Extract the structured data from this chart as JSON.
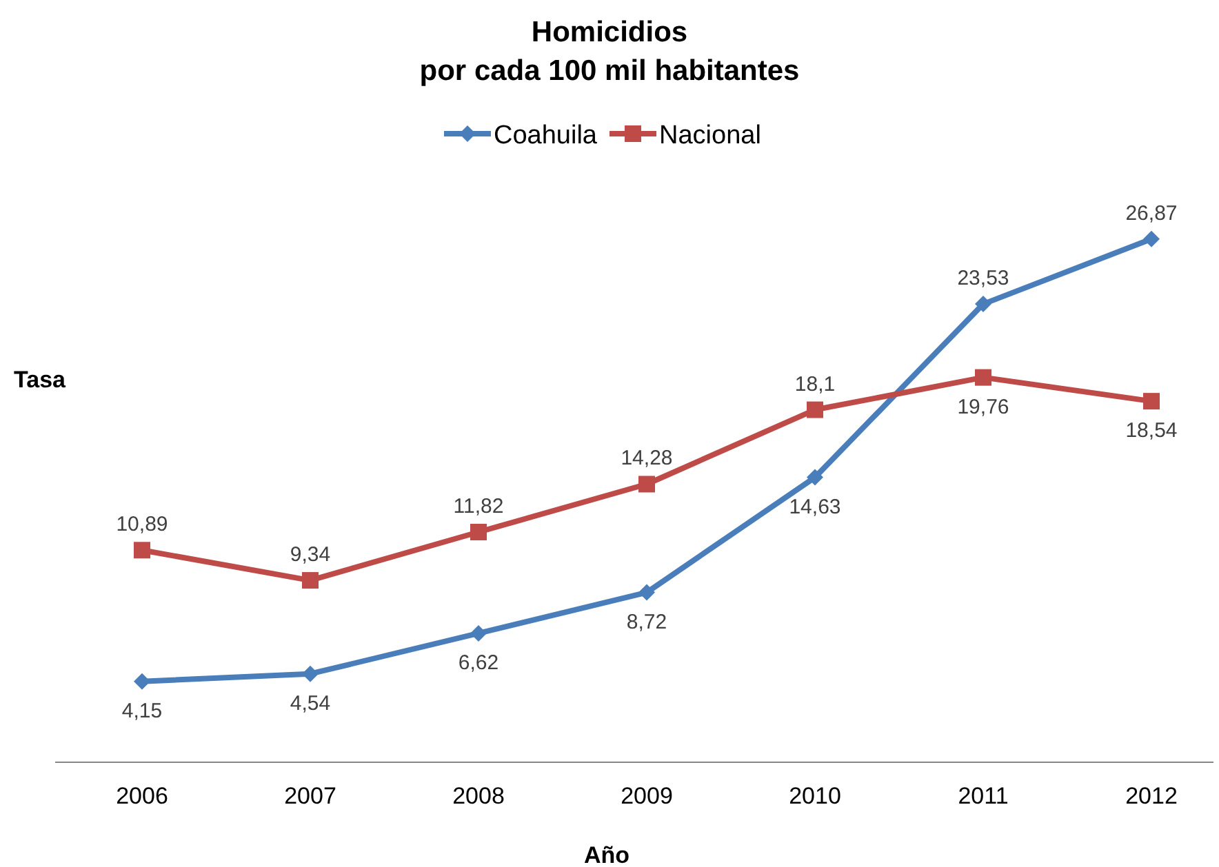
{
  "chart_data": {
    "type": "line",
    "title": "Homicidios\npor cada 100 mil habitantes",
    "xlabel": "Año",
    "ylabel": "Tasa",
    "categories": [
      "2006",
      "2007",
      "2008",
      "2009",
      "2010",
      "2011",
      "2012"
    ],
    "tick_labels": "x",
    "legend": "top",
    "line_style": "solid",
    "series": [
      {
        "name": "Coahuila",
        "color": "#4a7ebb",
        "marker": "diamond",
        "values": [
          4.15,
          4.54,
          6.62,
          8.72,
          14.63,
          23.53,
          26.87
        ],
        "value_labels": [
          "4,15",
          "4,54",
          "6,62",
          "8,72",
          "14,63",
          "23,53",
          "26,87"
        ]
      },
      {
        "name": "Nacional",
        "color": "#be4b48",
        "marker": "square",
        "values": [
          10.89,
          9.34,
          11.82,
          14.28,
          18.1,
          19.76,
          18.54
        ],
        "value_labels": [
          "10,89",
          "9,34",
          "11,82",
          "14,28",
          "18,1",
          "19,76",
          "18,54"
        ]
      }
    ]
  }
}
